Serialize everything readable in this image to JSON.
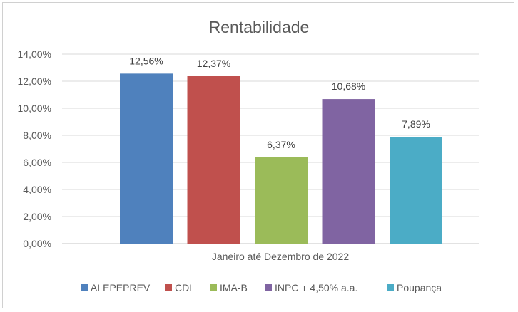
{
  "chart_data": {
    "type": "bar",
    "title": "Rentabilidade",
    "xlabel": "Janeiro até Dezembro de 2022",
    "ylabel": "",
    "categories": [
      "Janeiro até Dezembro de 2022"
    ],
    "ylim": [
      0,
      14
    ],
    "yticks": [
      0,
      2,
      4,
      6,
      8,
      10,
      12,
      14
    ],
    "ytick_labels": [
      "0,00%",
      "2,00%",
      "4,00%",
      "6,00%",
      "8,00%",
      "10,00%",
      "12,00%",
      "14,00%"
    ],
    "grid": true,
    "legend_position": "bottom",
    "series": [
      {
        "name": "ALEPEPREV",
        "values": [
          12.56
        ],
        "label": "12,56%",
        "color": "#4f81bd"
      },
      {
        "name": "CDI",
        "values": [
          12.37
        ],
        "label": "12,37%",
        "color": "#c0504d"
      },
      {
        "name": "IMA-B",
        "values": [
          6.37
        ],
        "label": "6,37%",
        "color": "#9bbb59"
      },
      {
        "name": "INPC + 4,50% a.a.",
        "values": [
          10.68
        ],
        "label": "10,68%",
        "color": "#8064a2"
      },
      {
        "name": "Poupança",
        "values": [
          7.89
        ],
        "label": "7,89%",
        "color": "#4bacc6"
      }
    ]
  }
}
